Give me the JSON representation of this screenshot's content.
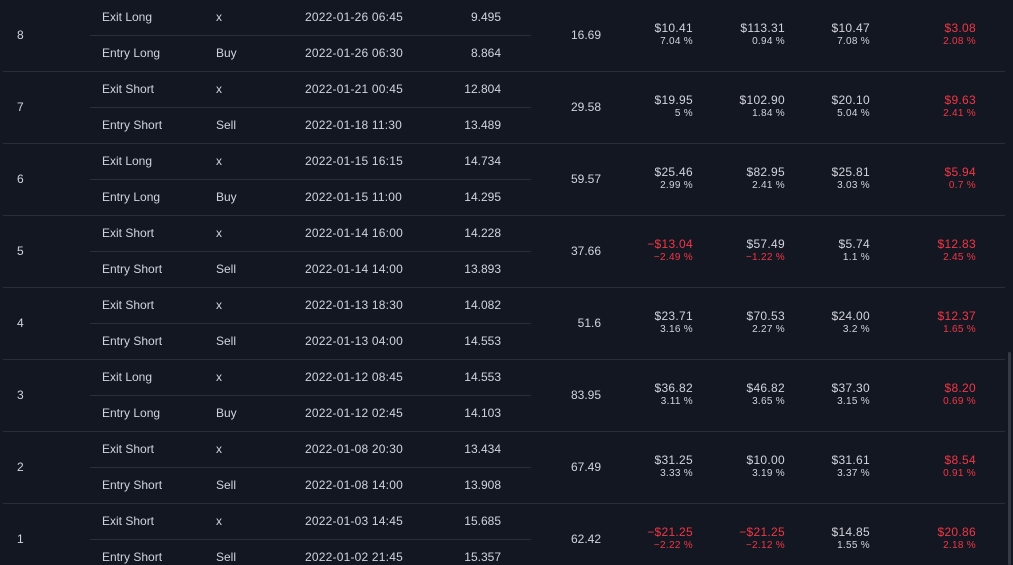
{
  "trades": [
    {
      "num": "8",
      "contracts": "16.69",
      "exit": {
        "type": "Exit Long",
        "signal": "x",
        "date": "2022-01-26 06:45",
        "price": "9.495"
      },
      "entry": {
        "type": "Entry Long",
        "signal": "Buy",
        "date": "2022-01-26 06:30",
        "price": "8.864"
      },
      "profit": {
        "value": "$10.41",
        "pct": "7.04 %",
        "negative": false
      },
      "cum_profit": {
        "value": "$113.31",
        "pct": "0.94 %",
        "negative": false
      },
      "run_up": {
        "value": "$10.47",
        "pct": "7.08 %"
      },
      "drawdown": {
        "value": "$3.08",
        "pct": "2.08 %"
      }
    },
    {
      "num": "7",
      "contracts": "29.58",
      "exit": {
        "type": "Exit Short",
        "signal": "x",
        "date": "2022-01-21 00:45",
        "price": "12.804"
      },
      "entry": {
        "type": "Entry Short",
        "signal": "Sell",
        "date": "2022-01-18 11:30",
        "price": "13.489"
      },
      "profit": {
        "value": "$19.95",
        "pct": "5 %",
        "negative": false
      },
      "cum_profit": {
        "value": "$102.90",
        "pct": "1.84 %",
        "negative": false
      },
      "run_up": {
        "value": "$20.10",
        "pct": "5.04 %"
      },
      "drawdown": {
        "value": "$9.63",
        "pct": "2.41 %"
      }
    },
    {
      "num": "6",
      "contracts": "59.57",
      "exit": {
        "type": "Exit Long",
        "signal": "x",
        "date": "2022-01-15 16:15",
        "price": "14.734"
      },
      "entry": {
        "type": "Entry Long",
        "signal": "Buy",
        "date": "2022-01-15 11:00",
        "price": "14.295"
      },
      "profit": {
        "value": "$25.46",
        "pct": "2.99 %",
        "negative": false
      },
      "cum_profit": {
        "value": "$82.95",
        "pct": "2.41 %",
        "negative": false
      },
      "run_up": {
        "value": "$25.81",
        "pct": "3.03 %"
      },
      "drawdown": {
        "value": "$5.94",
        "pct": "0.7 %"
      }
    },
    {
      "num": "5",
      "contracts": "37.66",
      "exit": {
        "type": "Exit Short",
        "signal": "x",
        "date": "2022-01-14 16:00",
        "price": "14.228"
      },
      "entry": {
        "type": "Entry Short",
        "signal": "Sell",
        "date": "2022-01-14 14:00",
        "price": "13.893"
      },
      "profit": {
        "value": "−$13.04",
        "pct": "−2.49 %",
        "negative": true
      },
      "cum_profit": {
        "value": "$57.49",
        "pct": "−1.22 %",
        "negative": false,
        "pct_negative": true
      },
      "run_up": {
        "value": "$5.74",
        "pct": "1.1 %"
      },
      "drawdown": {
        "value": "$12.83",
        "pct": "2.45 %"
      }
    },
    {
      "num": "4",
      "contracts": "51.6",
      "exit": {
        "type": "Exit Short",
        "signal": "x",
        "date": "2022-01-13 18:30",
        "price": "14.082"
      },
      "entry": {
        "type": "Entry Short",
        "signal": "Sell",
        "date": "2022-01-13 04:00",
        "price": "14.553"
      },
      "profit": {
        "value": "$23.71",
        "pct": "3.16 %",
        "negative": false
      },
      "cum_profit": {
        "value": "$70.53",
        "pct": "2.27 %",
        "negative": false
      },
      "run_up": {
        "value": "$24.00",
        "pct": "3.2 %"
      },
      "drawdown": {
        "value": "$12.37",
        "pct": "1.65 %"
      }
    },
    {
      "num": "3",
      "contracts": "83.95",
      "exit": {
        "type": "Exit Long",
        "signal": "x",
        "date": "2022-01-12 08:45",
        "price": "14.553"
      },
      "entry": {
        "type": "Entry Long",
        "signal": "Buy",
        "date": "2022-01-12 02:45",
        "price": "14.103"
      },
      "profit": {
        "value": "$36.82",
        "pct": "3.11 %",
        "negative": false
      },
      "cum_profit": {
        "value": "$46.82",
        "pct": "3.65 %",
        "negative": false
      },
      "run_up": {
        "value": "$37.30",
        "pct": "3.15 %"
      },
      "drawdown": {
        "value": "$8.20",
        "pct": "0.69 %"
      }
    },
    {
      "num": "2",
      "contracts": "67.49",
      "exit": {
        "type": "Exit Short",
        "signal": "x",
        "date": "2022-01-08 20:30",
        "price": "13.434"
      },
      "entry": {
        "type": "Entry Short",
        "signal": "Sell",
        "date": "2022-01-08 14:00",
        "price": "13.908"
      },
      "profit": {
        "value": "$31.25",
        "pct": "3.33 %",
        "negative": false
      },
      "cum_profit": {
        "value": "$10.00",
        "pct": "3.19 %",
        "negative": false
      },
      "run_up": {
        "value": "$31.61",
        "pct": "3.37 %"
      },
      "drawdown": {
        "value": "$8.54",
        "pct": "0.91 %"
      }
    },
    {
      "num": "1",
      "contracts": "62.42",
      "exit": {
        "type": "Exit Short",
        "signal": "x",
        "date": "2022-01-03 14:45",
        "price": "15.685"
      },
      "entry": {
        "type": "Entry Short",
        "signal": "Sell",
        "date": "2022-01-02 21:45",
        "price": "15.357"
      },
      "profit": {
        "value": "−$21.25",
        "pct": "−2.22 %",
        "negative": true
      },
      "cum_profit": {
        "value": "−$21.25",
        "pct": "−2.12 %",
        "negative": true,
        "pct_negative": true
      },
      "run_up": {
        "value": "$14.85",
        "pct": "1.55 %"
      },
      "drawdown": {
        "value": "$20.86",
        "pct": "2.18 %"
      }
    }
  ],
  "colors": {
    "background": "#131722",
    "text": "#d1d4dc",
    "negative": "#f23645",
    "divider": "#2a2e39"
  }
}
